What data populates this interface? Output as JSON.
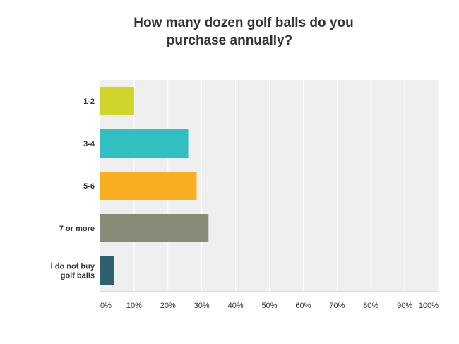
{
  "title_lines": [
    "How many dozen golf balls do you",
    "purchase annually?"
  ],
  "chart_data": {
    "type": "bar",
    "orientation": "horizontal",
    "title": "How many dozen golf balls do you purchase annually?",
    "categories": [
      "1-2",
      "3-4",
      "5-6",
      "7 or more",
      "I do not buy golf balls"
    ],
    "category_label_lines": [
      [
        "1-2"
      ],
      [
        "3-4"
      ],
      [
        "5-6"
      ],
      [
        "7 or more"
      ],
      [
        "I do not buy",
        "golf balls"
      ]
    ],
    "values": [
      10,
      26,
      28.5,
      32,
      4
    ],
    "unit": "%",
    "xlim": [
      0,
      100
    ],
    "ticks": [
      0,
      10,
      20,
      30,
      40,
      50,
      60,
      70,
      80,
      90,
      100
    ],
    "tick_labels": [
      "0%",
      "10%",
      "20%",
      "30%",
      "40%",
      "50%",
      "60%",
      "70%",
      "80%",
      "90%",
      "100%"
    ],
    "colors": [
      "#d0d52d",
      "#33bfc1",
      "#f7ae20",
      "#8a8a78",
      "#2e5f6e"
    ],
    "grid": true,
    "background": "#efefef"
  }
}
